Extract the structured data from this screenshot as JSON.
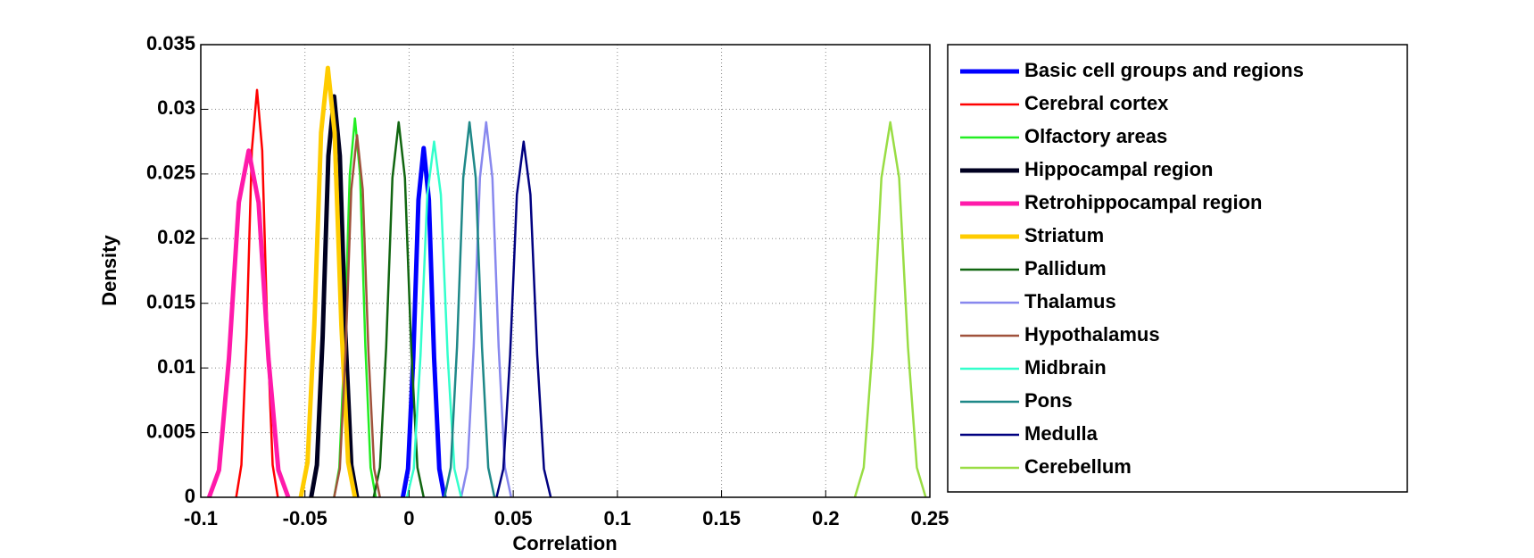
{
  "chart_data": {
    "type": "line",
    "xlabel": "Correlation",
    "ylabel": "Density",
    "xlim": [
      -0.1,
      0.25
    ],
    "xticks": [
      -0.1,
      -0.05,
      0,
      0.05,
      0.1,
      0.15,
      0.2,
      0.25
    ],
    "ylim": [
      0,
      0.035
    ],
    "yticks": [
      0,
      0.005,
      0.01,
      0.015,
      0.02,
      0.025,
      0.03,
      0.035
    ],
    "grid": true,
    "legend": "outside-right",
    "series": [
      {
        "name": "Basic cell groups and regions",
        "color": "#0000ff",
        "linewidth": 5,
        "x": [
          -0.003,
          -0.0005,
          0.002,
          0.0045,
          0.007,
          0.0095,
          0.012,
          0.0145,
          0.017
        ],
        "values": [
          0,
          0.0022,
          0.0108,
          0.023,
          0.027,
          0.023,
          0.0108,
          0.0022,
          0
        ]
      },
      {
        "name": "Cerebral cortex",
        "color": "#ff0000",
        "linewidth": 2.5,
        "x": [
          -0.083,
          -0.0805,
          -0.078,
          -0.0755,
          -0.073,
          -0.0705,
          -0.068,
          -0.0655,
          -0.063
        ],
        "values": [
          0,
          0.0025,
          0.0126,
          0.0268,
          0.0315,
          0.0268,
          0.0126,
          0.0025,
          0
        ]
      },
      {
        "name": "Olfactory areas",
        "color": "#22ee22",
        "linewidth": 2.5,
        "x": [
          -0.036,
          -0.0335,
          -0.031,
          -0.0285,
          -0.026,
          -0.0235,
          -0.021,
          -0.0185,
          -0.016
        ],
        "values": [
          0,
          0.0023,
          0.0117,
          0.0249,
          0.0293,
          0.0249,
          0.0117,
          0.0023,
          0
        ]
      },
      {
        "name": "Hippocampal region",
        "color": "#000020",
        "linewidth": 5,
        "x": [
          -0.047,
          -0.04425,
          -0.0415,
          -0.03875,
          -0.036,
          -0.03325,
          -0.0305,
          -0.02775,
          -0.025
        ],
        "values": [
          0,
          0.0025,
          0.0124,
          0.0264,
          0.031,
          0.0264,
          0.0124,
          0.0025,
          0
        ]
      },
      {
        "name": "Retrohippocampal region",
        "color": "#ff1aaa",
        "linewidth": 5,
        "x": [
          -0.096,
          -0.09125,
          -0.0865,
          -0.08175,
          -0.077,
          -0.07225,
          -0.0675,
          -0.06275,
          -0.058
        ],
        "values": [
          0,
          0.0021,
          0.0107,
          0.0228,
          0.0268,
          0.0228,
          0.0107,
          0.0021,
          0
        ]
      },
      {
        "name": "Striatum",
        "color": "#ffcc00",
        "linewidth": 5,
        "x": [
          -0.052,
          -0.04875,
          -0.0455,
          -0.04225,
          -0.039,
          -0.03575,
          -0.0325,
          -0.02925,
          -0.026
        ],
        "values": [
          0,
          0.0027,
          0.0133,
          0.0282,
          0.0332,
          0.0282,
          0.0133,
          0.0027,
          0
        ]
      },
      {
        "name": "Pallidum",
        "color": "#116611",
        "linewidth": 2.5,
        "x": [
          -0.017,
          -0.014,
          -0.011,
          -0.008,
          -0.005,
          -0.002,
          0.001,
          0.004,
          0.007
        ],
        "values": [
          0,
          0.0023,
          0.0116,
          0.0247,
          0.029,
          0.0247,
          0.0116,
          0.0023,
          0
        ]
      },
      {
        "name": "Thalamus",
        "color": "#8888ee",
        "linewidth": 2.5,
        "x": [
          0.025,
          0.028,
          0.031,
          0.034,
          0.037,
          0.04,
          0.043,
          0.046,
          0.049
        ],
        "values": [
          0,
          0.0023,
          0.0116,
          0.0247,
          0.029,
          0.0247,
          0.0116,
          0.0023,
          0
        ]
      },
      {
        "name": "Hypothalamus",
        "color": "#a0523c",
        "linewidth": 2.5,
        "x": [
          -0.036,
          -0.03325,
          -0.0305,
          -0.02775,
          -0.025,
          -0.02225,
          -0.0195,
          -0.01675,
          -0.014
        ],
        "values": [
          0,
          0.0022,
          0.0112,
          0.0238,
          0.028,
          0.0238,
          0.0112,
          0.0022,
          0
        ]
      },
      {
        "name": "Midbrain",
        "color": "#33ffcc",
        "linewidth": 2.5,
        "x": [
          -0.001,
          0.00225,
          0.0055,
          0.00875,
          0.012,
          0.01525,
          0.0185,
          0.02175,
          0.025
        ],
        "values": [
          0,
          0.0022,
          0.011,
          0.0234,
          0.0275,
          0.0234,
          0.011,
          0.0022,
          0
        ]
      },
      {
        "name": "Pons",
        "color": "#1e8888",
        "linewidth": 2.5,
        "x": [
          0.017,
          0.02,
          0.023,
          0.026,
          0.029,
          0.032,
          0.035,
          0.038,
          0.041
        ],
        "values": [
          0,
          0.0023,
          0.0116,
          0.0247,
          0.029,
          0.0247,
          0.0116,
          0.0023,
          0
        ]
      },
      {
        "name": "Medulla",
        "color": "#000080",
        "linewidth": 2.5,
        "x": [
          0.042,
          0.04525,
          0.0485,
          0.05175,
          0.055,
          0.05825,
          0.0615,
          0.06475,
          0.068
        ],
        "values": [
          0,
          0.0022,
          0.011,
          0.0234,
          0.0275,
          0.0234,
          0.011,
          0.0022,
          0
        ]
      },
      {
        "name": "Cerebellum",
        "color": "#99dd44",
        "linewidth": 2.5,
        "x": [
          0.214,
          0.21825,
          0.2225,
          0.22675,
          0.231,
          0.23525,
          0.2395,
          0.24375,
          0.248
        ],
        "values": [
          0,
          0.0023,
          0.0116,
          0.0247,
          0.029,
          0.0247,
          0.0116,
          0.0023,
          0
        ]
      }
    ]
  }
}
